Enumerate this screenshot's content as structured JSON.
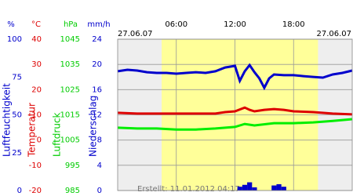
{
  "chart_data": {
    "type": "weather-multi-axis",
    "date_left": "27.06.07",
    "date_right": "27.06.07",
    "footer": "Erstellt: 11.01.2012 04:17",
    "xlim": [
      0,
      24
    ],
    "xticks": [
      {
        "value": 6,
        "label": "06:00"
      },
      {
        "value": 12,
        "label": "12:00"
      },
      {
        "value": 18,
        "label": "18:00"
      }
    ],
    "daylight": [
      4.5,
      20.5
    ],
    "grid": true,
    "axes": [
      {
        "unit": "%",
        "label": "Luftfeuchtigkeit",
        "color": "#0000cc",
        "lim": [
          0,
          100
        ],
        "ticks": [
          100,
          75,
          50,
          25,
          0
        ]
      },
      {
        "unit": "°C",
        "label": "Temperatur",
        "color": "#dd0000",
        "lim": [
          -20,
          40
        ],
        "ticks": [
          40,
          30,
          20,
          10,
          0,
          -10,
          -20
        ]
      },
      {
        "unit": "hPa",
        "label": "Luftdruck",
        "color": "#00cc00",
        "lim": [
          985,
          1045
        ],
        "ticks": [
          1045,
          1035,
          1025,
          1015,
          1005,
          995,
          985
        ]
      },
      {
        "unit": "mm/h",
        "label": "Niederschlag",
        "color": "#0000cc",
        "lim": [
          0,
          24
        ],
        "ticks": [
          24,
          20,
          16,
          12,
          8,
          4,
          0
        ]
      }
    ],
    "series": [
      {
        "name": "Luftfeuchtigkeit",
        "kind": "line",
        "axis": 0,
        "color": "#0000cc",
        "x": [
          0,
          1,
          2,
          3,
          4,
          5,
          6,
          7,
          8,
          9,
          10,
          11,
          12,
          12.5,
          13,
          13.5,
          14,
          14.5,
          15,
          15.5,
          16,
          17,
          18,
          19,
          20,
          21,
          22,
          23,
          24
        ],
        "values": [
          78.8,
          79.8,
          79.3,
          78.2,
          77.7,
          77.7,
          77.2,
          77.7,
          78.2,
          77.7,
          78.8,
          81.3,
          82.4,
          72.5,
          78.8,
          82.9,
          78.2,
          74.1,
          67.9,
          74.1,
          76.7,
          76.2,
          76.2,
          75.6,
          75.1,
          74.6,
          76.7,
          77.7,
          79.3
        ]
      },
      {
        "name": "Temperatur",
        "kind": "line",
        "axis": 1,
        "color": "#dd0000",
        "x": [
          0,
          2,
          4,
          6,
          8,
          10,
          11,
          12,
          13,
          13.5,
          14,
          15,
          16,
          17,
          18,
          20,
          22,
          24
        ],
        "values": [
          10.8,
          10.5,
          10.5,
          10.5,
          10.5,
          10.5,
          11.1,
          11.4,
          12.9,
          12.0,
          11.4,
          12.0,
          12.3,
          12.0,
          11.4,
          11.1,
          10.5,
          10.2
        ]
      },
      {
        "name": "Luftdruck",
        "kind": "line",
        "axis": 2,
        "color": "#00ee00",
        "x": [
          0,
          2,
          4,
          6,
          8,
          10,
          12,
          13,
          14,
          16,
          18,
          20,
          22,
          24
        ],
        "values": [
          1009.9,
          1009.6,
          1009.6,
          1009.2,
          1009.2,
          1009.6,
          1010.2,
          1011.4,
          1010.8,
          1011.7,
          1011.7,
          1012.0,
          1012.6,
          1013.3
        ]
      },
      {
        "name": "Niederschlag",
        "kind": "bar",
        "axis": 3,
        "color": "#0000cc",
        "x": [
          12.5,
          13,
          13.5,
          14,
          16,
          16.5,
          17
        ],
        "values": [
          0.6,
          0.9,
          1.3,
          0.5,
          0.8,
          1.0,
          0.6
        ]
      }
    ]
  }
}
